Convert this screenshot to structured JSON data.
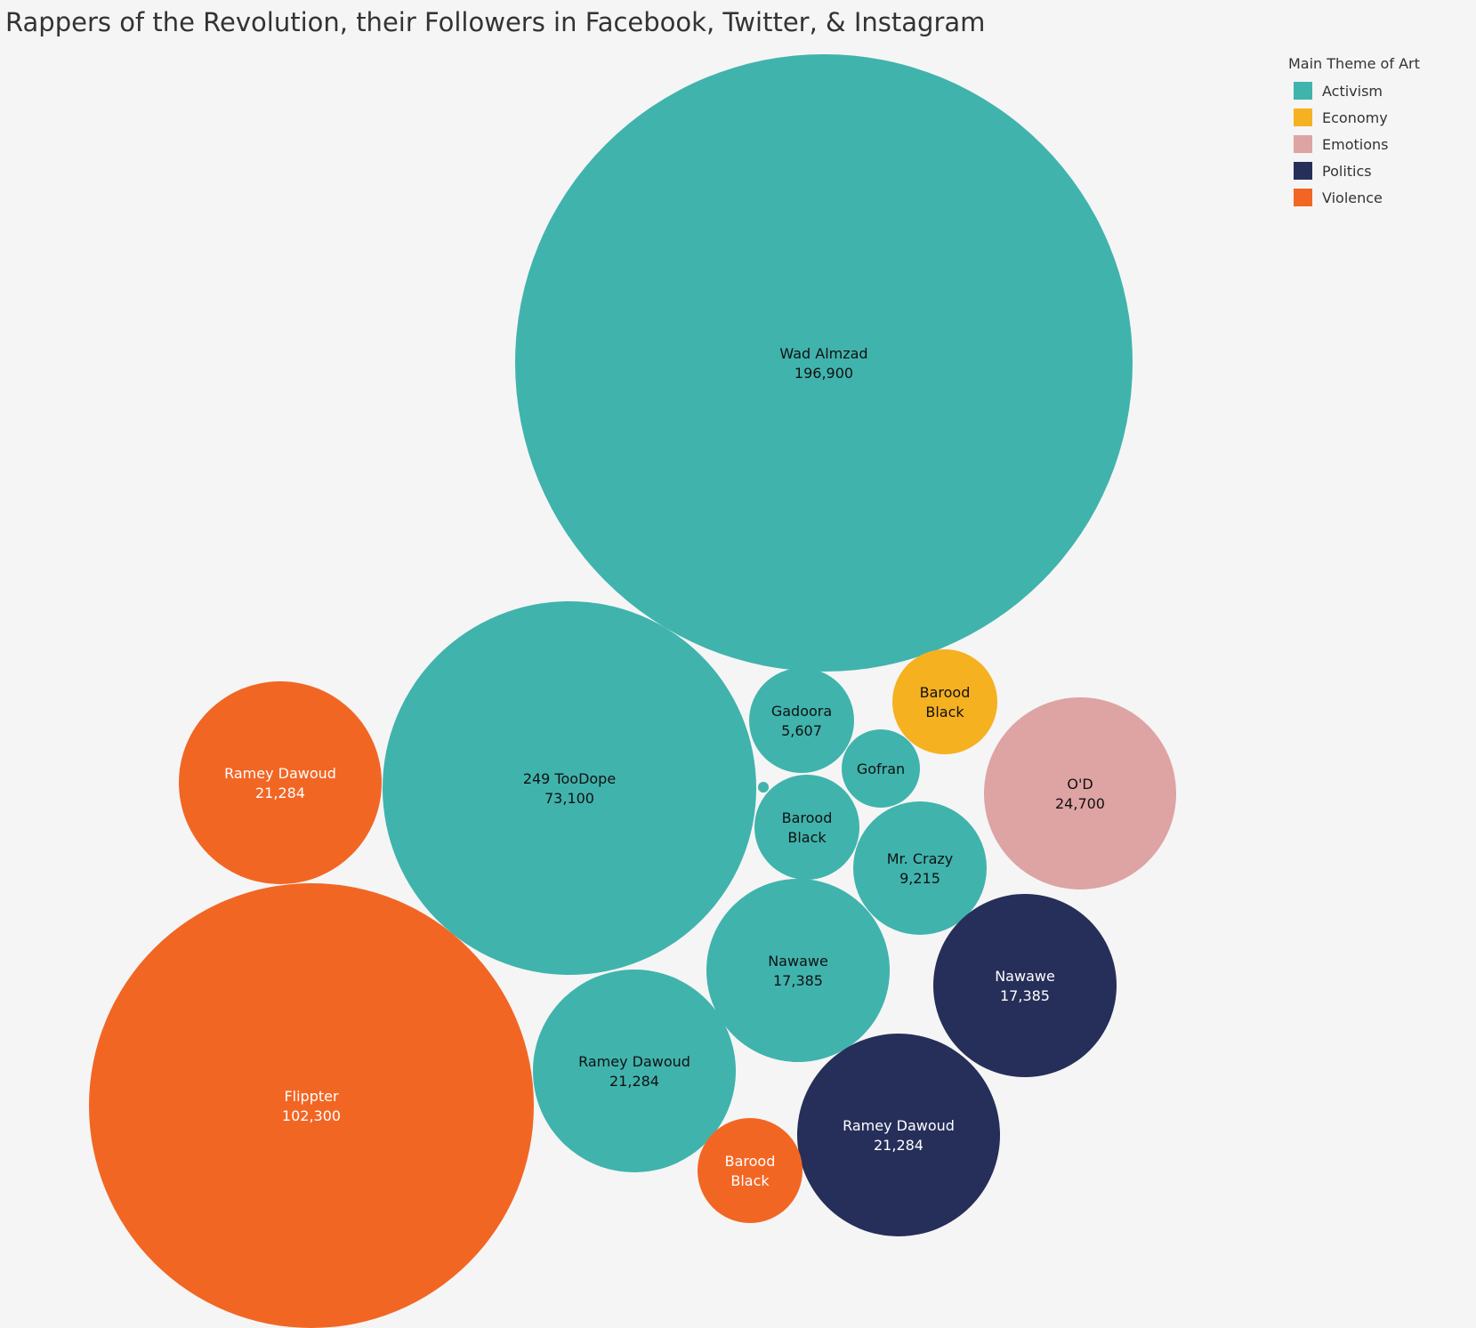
{
  "chart_data": {
    "type": "bubble",
    "title": "Rappers of the Revolution, their Followers in Facebook, Twitter, & Instagram",
    "legend": {
      "title": "Main Theme of Art",
      "placement": "top-right",
      "items": [
        {
          "name": "Activism",
          "color": "#40b3ad"
        },
        {
          "name": "Economy",
          "color": "#f5b120"
        },
        {
          "name": "Emotions",
          "color": "#dea3a3"
        },
        {
          "name": "Politics",
          "color": "#262f59"
        },
        {
          "name": "Violence",
          "color": "#f26624"
        }
      ]
    },
    "bubbles": [
      {
        "name": "Wad Almzad",
        "value": 196900,
        "value_label": "196,900",
        "theme": "Activism"
      },
      {
        "name": "249 TooDope",
        "value": 73100,
        "value_label": "73,100",
        "theme": "Activism"
      },
      {
        "name": "Nawawe",
        "value": 17385,
        "value_label": "17,385",
        "theme": "Activism"
      },
      {
        "name": "Ramey Dawoud",
        "value": 21284,
        "value_label": "21,284",
        "theme": "Activism"
      },
      {
        "name": "Mr. Crazy",
        "value": 9215,
        "value_label": "9,215",
        "theme": "Activism"
      },
      {
        "name": "Gadoora",
        "value": 5607,
        "value_label": "5,607",
        "theme": "Activism"
      },
      {
        "name": "Barood Black",
        "value": 4700,
        "value_label": "",
        "theme": "Activism"
      },
      {
        "name": "Gofran",
        "value": 3100,
        "value_label": "",
        "theme": "Activism"
      },
      {
        "name": "",
        "value": 50,
        "value_label": "",
        "theme": "Activism"
      },
      {
        "name": "Barood Black",
        "value": 4700,
        "value_label": "",
        "theme": "Economy"
      },
      {
        "name": "O'D",
        "value": 24700,
        "value_label": "24,700",
        "theme": "Emotions"
      },
      {
        "name": "Nawawe",
        "value": 17385,
        "value_label": "17,385",
        "theme": "Politics"
      },
      {
        "name": "Ramey Dawoud",
        "value": 21284,
        "value_label": "21,284",
        "theme": "Politics"
      },
      {
        "name": "Flippter",
        "value": 102300,
        "value_label": "102,300",
        "theme": "Violence"
      },
      {
        "name": "Ramey Dawoud",
        "value": 21284,
        "value_label": "21,284",
        "theme": "Violence"
      },
      {
        "name": "Barood Black",
        "value": 4700,
        "value_label": "",
        "theme": "Violence"
      }
    ]
  }
}
